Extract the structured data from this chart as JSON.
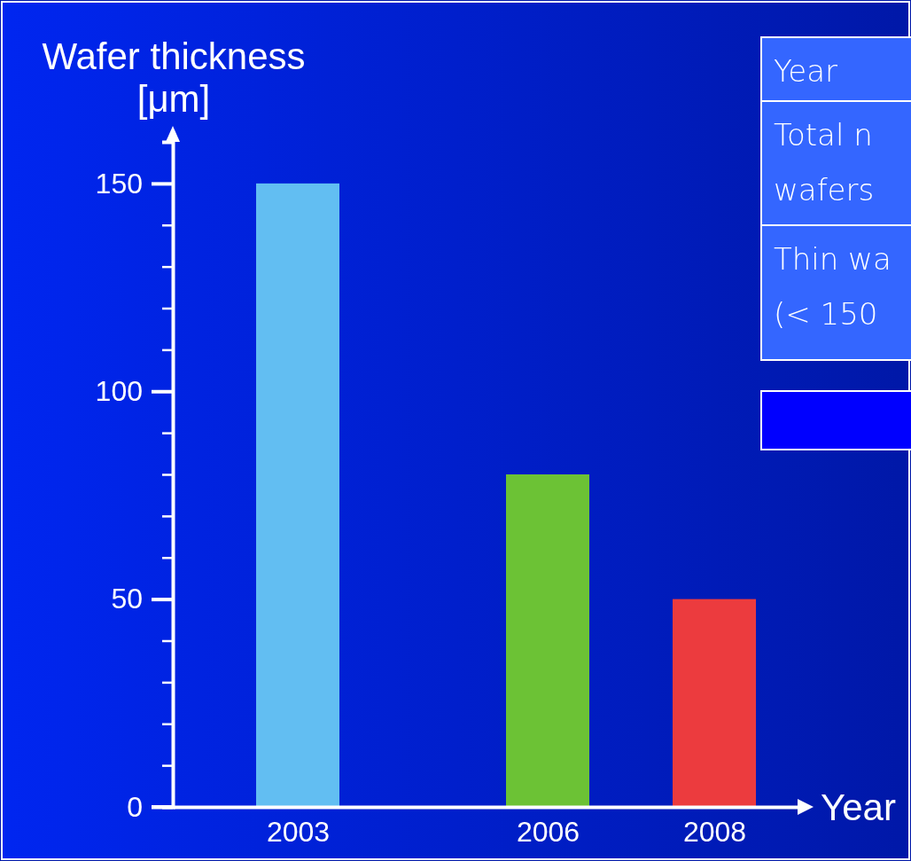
{
  "chart_data": {
    "type": "bar",
    "xlabel": "Year",
    "ylabel": "Wafer thickness [μm]",
    "x": [
      2003,
      2006,
      2008
    ],
    "values": [
      150,
      80,
      50
    ],
    "colors": [
      "#62bef2",
      "#6cc235",
      "#ec3b3e"
    ],
    "xlim": [
      2001.5,
      2009
    ],
    "xticks": [
      2003,
      2006,
      2008
    ],
    "ylim": [
      0,
      160
    ],
    "yticks": [
      0,
      {
        "value": 10,
        "label": null
      },
      {
        "value": 20,
        "label": null
      },
      {
        "value": 30,
        "label": null
      },
      {
        "value": 40,
        "label": null
      },
      50,
      {
        "value": 60,
        "label": null
      },
      {
        "value": 70,
        "label": null
      },
      {
        "value": 80,
        "label": null
      },
      {
        "value": 90,
        "label": null
      },
      100,
      {
        "value": 110,
        "label": null
      },
      {
        "value": 120,
        "label": null
      },
      {
        "value": 130,
        "label": null
      },
      {
        "value": 140,
        "label": null
      },
      150
    ],
    "annotations": [
      "Year",
      "Total n wafers",
      "Thin wa (< 150"
    ]
  }
}
